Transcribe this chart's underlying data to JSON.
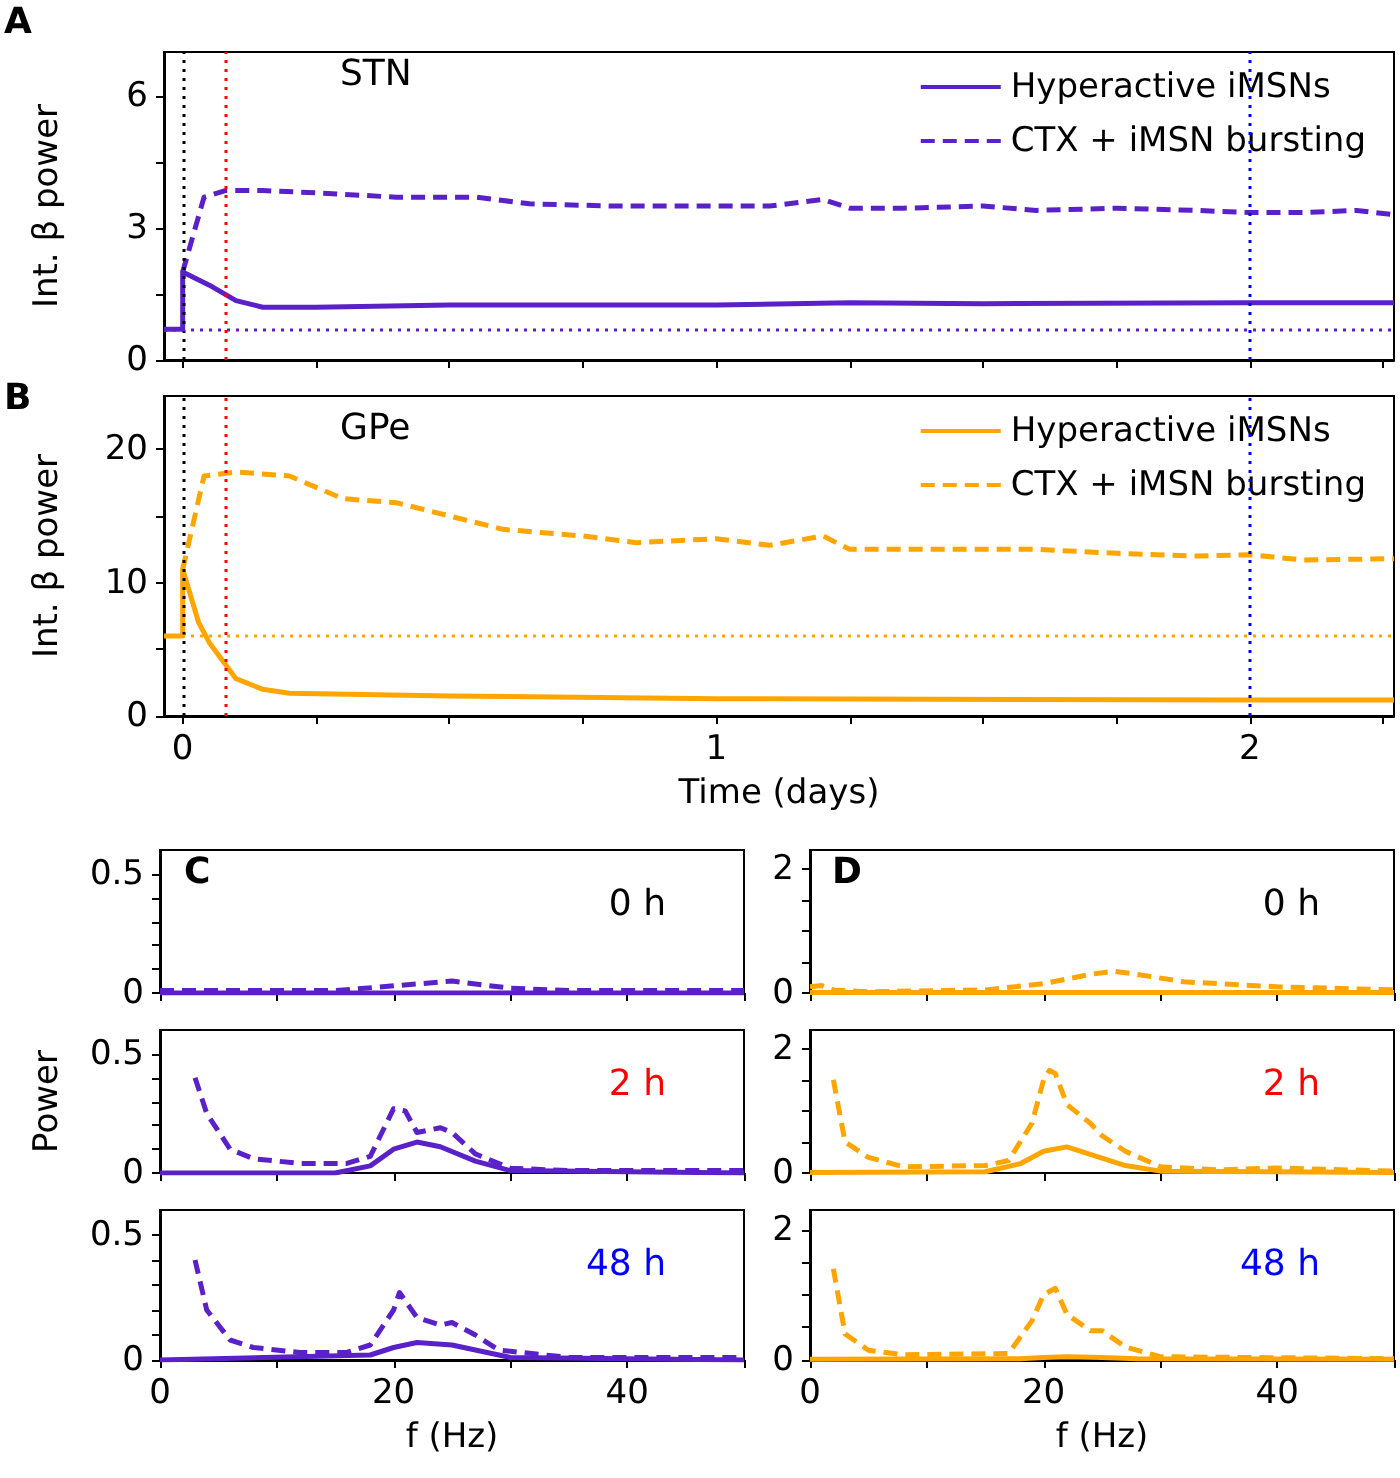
{
  "chart_data": [
    {
      "type": "line",
      "annotations": [
        "A",
        "STN"
      ],
      "ylabel": "Int. β power",
      "xlim": [
        -0.035,
        2.27
      ],
      "ylim": [
        0,
        7
      ],
      "xticks": [
        0,
        {
          "value": 0.25,
          "label": null
        },
        {
          "value": 0.5,
          "label": null
        },
        {
          "value": 0.75,
          "label": null
        },
        1,
        {
          "value": 1.25,
          "label": null
        },
        {
          "value": 1.5,
          "label": null
        },
        {
          "value": 1.75,
          "label": null
        },
        2,
        {
          "value": 2.25,
          "label": null
        }
      ],
      "yticks": [
        0,
        {
          "value": 1.5,
          "label": null
        },
        3,
        {
          "value": 4.5,
          "label": null
        },
        6
      ],
      "tick_labels": "y",
      "legend": "top right",
      "marker": "none",
      "grid": false,
      "ref_lines": [
        {
          "axis": "x",
          "value": 0,
          "color": "#000000",
          "line_style": "dotted"
        },
        {
          "axis": "x",
          "value": 0.083,
          "color": "#ff0000",
          "line_style": "dotted"
        },
        {
          "axis": "x",
          "value": 2,
          "color": "#0000ff",
          "line_style": "dotted"
        },
        {
          "axis": "y",
          "value": 0.7,
          "color": "#5b21c8",
          "line_style": "dotted"
        }
      ],
      "series": [
        {
          "name": "Hyperactive iMSNs",
          "color": "#5b21c8",
          "line_style": "solid",
          "x": [
            -0.035,
            0,
            0,
            0.05,
            0.1,
            0.15,
            0.25,
            0.5,
            1,
            1.25,
            1.5,
            2,
            2.27
          ],
          "values": [
            0.7,
            0.7,
            2.0,
            1.7,
            1.35,
            1.2,
            1.2,
            1.25,
            1.25,
            1.3,
            1.28,
            1.3,
            1.3
          ]
        },
        {
          "name": "CTX + iMSN bursting",
          "color": "#5b21c8",
          "line_style": "dashed",
          "x": [
            0,
            0.04,
            0.08,
            0.15,
            0.25,
            0.4,
            0.55,
            0.65,
            0.8,
            0.95,
            1.1,
            1.2,
            1.25,
            1.35,
            1.5,
            1.6,
            1.75,
            1.9,
            2,
            2.1,
            2.2,
            2.27
          ],
          "values": [
            2.0,
            3.7,
            3.85,
            3.85,
            3.8,
            3.7,
            3.7,
            3.55,
            3.5,
            3.5,
            3.5,
            3.65,
            3.45,
            3.45,
            3.5,
            3.4,
            3.45,
            3.4,
            3.35,
            3.35,
            3.4,
            3.3
          ]
        }
      ]
    },
    {
      "type": "line",
      "annotations": [
        "B",
        "GPe"
      ],
      "ylabel": "Int. β power",
      "xlabel": "Time (days)",
      "xlim": [
        -0.035,
        2.27
      ],
      "ylim": [
        0,
        24
      ],
      "xticks": [
        0,
        {
          "value": 0.25,
          "label": null
        },
        {
          "value": 0.5,
          "label": null
        },
        {
          "value": 0.75,
          "label": null
        },
        1,
        {
          "value": 1.25,
          "label": null
        },
        {
          "value": 1.5,
          "label": null
        },
        {
          "value": 1.75,
          "label": null
        },
        2,
        {
          "value": 2.25,
          "label": null
        }
      ],
      "yticks": [
        0,
        {
          "value": 5,
          "label": null
        },
        10,
        {
          "value": 15,
          "label": null
        },
        20
      ],
      "legend": "top right",
      "marker": "none",
      "grid": false,
      "ref_lines": [
        {
          "axis": "x",
          "value": 0,
          "color": "#000000",
          "line_style": "dotted"
        },
        {
          "axis": "x",
          "value": 0.083,
          "color": "#ff0000",
          "line_style": "dotted"
        },
        {
          "axis": "x",
          "value": 2,
          "color": "#0000ff",
          "line_style": "dotted"
        },
        {
          "axis": "y",
          "value": 6,
          "color": "#ffa500",
          "line_style": "dotted"
        }
      ],
      "series": [
        {
          "name": "Hyperactive iMSNs",
          "color": "#ffa500",
          "line_style": "solid",
          "x": [
            -0.035,
            0,
            0,
            0.03,
            0.05,
            0.1,
            0.15,
            0.2,
            0.5,
            1,
            2,
            2.27
          ],
          "values": [
            6,
            6,
            11,
            7,
            5.5,
            2.8,
            2,
            1.7,
            1.5,
            1.3,
            1.2,
            1.2
          ]
        },
        {
          "name": "CTX + iMSN bursting",
          "color": "#ffa500",
          "line_style": "dashed",
          "x": [
            0,
            0.04,
            0.1,
            0.2,
            0.3,
            0.4,
            0.5,
            0.6,
            0.75,
            0.85,
            1,
            1.1,
            1.2,
            1.25,
            1.4,
            1.5,
            1.6,
            1.75,
            1.9,
            2,
            2.1,
            2.27
          ],
          "values": [
            11,
            18,
            18.3,
            18,
            16.3,
            16,
            15,
            14,
            13.5,
            13,
            13.3,
            12.8,
            13.5,
            12.5,
            12.5,
            12.5,
            12.5,
            12.2,
            12,
            12.1,
            11.7,
            11.8
          ]
        }
      ]
    },
    {
      "type": "line",
      "annotations": [
        "C",
        "0 h"
      ],
      "xlim": [
        0,
        50
      ],
      "ylim": [
        0,
        0.6
      ],
      "tick_labels": "y",
      "marker": "none",
      "grid": false,
      "legend": false,
      "xticks": [
        0,
        {
          "value": 10,
          "label": null
        },
        20,
        {
          "value": 30,
          "label": null
        },
        40,
        {
          "value": 50,
          "label": null
        }
      ],
      "yticks": [
        0,
        {
          "value": 0.1,
          "label": null
        },
        {
          "value": 0.2,
          "label": null
        },
        {
          "value": 0.3,
          "label": null
        },
        {
          "value": 0.4,
          "label": null
        },
        0.5
      ],
      "series": [
        {
          "color": "#5b21c8",
          "line_style": "solid",
          "x": [
            0,
            50
          ],
          "values": [
            0,
            0
          ]
        },
        {
          "color": "#5b21c8",
          "line_style": "dashed",
          "x": [
            0,
            15,
            20,
            25,
            30,
            35,
            50
          ],
          "values": [
            0.01,
            0.01,
            0.03,
            0.05,
            0.02,
            0.01,
            0.01
          ]
        }
      ]
    },
    {
      "type": "line",
      "annotations": [
        "2 h"
      ],
      "ylabel": "Power",
      "xlim": [
        0,
        50
      ],
      "ylim": [
        0,
        0.6
      ],
      "tick_labels": "y",
      "marker": "none",
      "grid": false,
      "legend": false,
      "xticks": [
        0,
        {
          "value": 10,
          "label": null
        },
        20,
        {
          "value": 30,
          "label": null
        },
        40,
        {
          "value": 50,
          "label": null
        }
      ],
      "yticks": [
        0,
        {
          "value": 0.1,
          "label": null
        },
        {
          "value": 0.2,
          "label": null
        },
        {
          "value": 0.3,
          "label": null
        },
        {
          "value": 0.4,
          "label": null
        },
        0.5
      ],
      "series": [
        {
          "color": "#5b21c8",
          "line_style": "solid",
          "x": [
            0,
            15,
            18,
            20,
            22,
            24,
            27,
            30,
            50
          ],
          "values": [
            0,
            0,
            0.03,
            0.1,
            0.13,
            0.11,
            0.05,
            0.01,
            0
          ]
        },
        {
          "color": "#5b21c8",
          "line_style": "dashed",
          "x": [
            3,
            4,
            6,
            8,
            12,
            16,
            18,
            20,
            21,
            22,
            24,
            25,
            27,
            30,
            35,
            50
          ],
          "values": [
            0.4,
            0.25,
            0.1,
            0.06,
            0.04,
            0.04,
            0.07,
            0.27,
            0.26,
            0.17,
            0.19,
            0.17,
            0.08,
            0.02,
            0.01,
            0.01
          ]
        }
      ]
    },
    {
      "type": "line",
      "annotations": [
        "48 h"
      ],
      "xlabel": "f (Hz)",
      "xlim": [
        0,
        50
      ],
      "ylim": [
        0,
        0.6
      ],
      "marker": "none",
      "grid": false,
      "legend": false,
      "xticks": [
        0,
        {
          "value": 10,
          "label": null
        },
        20,
        {
          "value": 30,
          "label": null
        },
        40,
        {
          "value": 50,
          "label": null
        }
      ],
      "yticks": [
        0,
        {
          "value": 0.1,
          "label": null
        },
        {
          "value": 0.2,
          "label": null
        },
        {
          "value": 0.3,
          "label": null
        },
        {
          "value": 0.4,
          "label": null
        },
        0.5
      ],
      "series": [
        {
          "color": "#5b21c8",
          "line_style": "solid",
          "x": [
            0,
            18,
            20,
            22,
            25,
            28,
            30,
            50
          ],
          "values": [
            0,
            0.02,
            0.05,
            0.07,
            0.06,
            0.03,
            0.01,
            0
          ]
        },
        {
          "color": "#5b21c8",
          "line_style": "dashed",
          "x": [
            3,
            4,
            6,
            8,
            12,
            16,
            18,
            20,
            20.5,
            22,
            24,
            25,
            27,
            29,
            35,
            50
          ],
          "values": [
            0.4,
            0.2,
            0.08,
            0.05,
            0.03,
            0.03,
            0.06,
            0.2,
            0.27,
            0.17,
            0.14,
            0.15,
            0.1,
            0.04,
            0.01,
            0.01
          ]
        }
      ]
    },
    {
      "type": "line",
      "annotations": [
        "D",
        "0 h"
      ],
      "xlim": [
        0,
        50
      ],
      "ylim": [
        0,
        2.3
      ],
      "tick_labels": "y",
      "marker": "none",
      "grid": false,
      "legend": false,
      "xticks": [
        0,
        {
          "value": 10,
          "label": null
        },
        20,
        {
          "value": 30,
          "label": null
        },
        40,
        {
          "value": 50,
          "label": null
        }
      ],
      "yticks": [
        0,
        {
          "value": 0.5,
          "label": null
        },
        {
          "value": 1,
          "label": null
        },
        {
          "value": 1.5,
          "label": null
        },
        2
      ],
      "series": [
        {
          "color": "#ffa500",
          "line_style": "solid",
          "x": [
            0,
            50
          ],
          "values": [
            0.01,
            0.01
          ]
        },
        {
          "color": "#ffa500",
          "line_style": "dashed",
          "x": [
            0,
            1,
            2,
            5,
            15,
            20,
            24,
            26,
            28,
            32,
            40,
            50
          ],
          "values": [
            0.1,
            0.12,
            0.05,
            0.02,
            0.05,
            0.15,
            0.3,
            0.35,
            0.3,
            0.18,
            0.1,
            0.05
          ]
        }
      ]
    },
    {
      "type": "line",
      "annotations": [
        "2 h"
      ],
      "xlim": [
        0,
        50
      ],
      "ylim": [
        0,
        2.3
      ],
      "tick_labels": "y",
      "marker": "none",
      "grid": false,
      "legend": false,
      "xticks": [
        0,
        {
          "value": 10,
          "label": null
        },
        20,
        {
          "value": 30,
          "label": null
        },
        40,
        {
          "value": 50,
          "label": null
        }
      ],
      "yticks": [
        0,
        {
          "value": 0.5,
          "label": null
        },
        {
          "value": 1,
          "label": null
        },
        {
          "value": 1.5,
          "label": null
        },
        2
      ],
      "series": [
        {
          "color": "#ffa500",
          "line_style": "solid",
          "x": [
            0,
            15,
            18,
            20,
            22,
            24,
            27,
            30,
            50
          ],
          "values": [
            0.01,
            0.02,
            0.15,
            0.35,
            0.42,
            0.3,
            0.12,
            0.03,
            0.01
          ]
        },
        {
          "color": "#ffa500",
          "line_style": "dashed",
          "x": [
            2,
            3,
            5,
            8,
            15,
            17,
            19,
            20,
            20.5,
            21,
            22,
            24,
            25,
            27,
            30,
            35,
            40,
            50
          ],
          "values": [
            1.5,
            0.5,
            0.25,
            0.1,
            0.12,
            0.2,
            0.8,
            1.5,
            1.65,
            1.6,
            1.1,
            0.8,
            0.6,
            0.35,
            0.1,
            0.05,
            0.08,
            0.03
          ]
        }
      ]
    },
    {
      "type": "line",
      "annotations": [
        "48 h"
      ],
      "xlabel": "f (Hz)",
      "xlim": [
        0,
        50
      ],
      "ylim": [
        0,
        2.3
      ],
      "marker": "none",
      "grid": false,
      "legend": false,
      "xticks": [
        0,
        {
          "value": 10,
          "label": null
        },
        20,
        {
          "value": 30,
          "label": null
        },
        40,
        {
          "value": 50,
          "label": null
        }
      ],
      "yticks": [
        0,
        {
          "value": 0.5,
          "label": null
        },
        {
          "value": 1,
          "label": null
        },
        {
          "value": 1.5,
          "label": null
        },
        2
      ],
      "series": [
        {
          "color": "#ffa500",
          "line_style": "solid",
          "x": [
            0,
            18,
            20,
            22,
            25,
            28,
            50
          ],
          "values": [
            0.01,
            0.02,
            0.04,
            0.05,
            0.04,
            0.02,
            0.01
          ]
        },
        {
          "color": "#ffa500",
          "line_style": "dashed",
          "x": [
            2,
            3,
            5,
            8,
            17,
            19,
            20,
            21,
            22,
            24,
            25,
            27,
            30,
            50
          ],
          "values": [
            1.4,
            0.4,
            0.15,
            0.08,
            0.1,
            0.6,
            1.0,
            1.1,
            0.7,
            0.45,
            0.45,
            0.2,
            0.05,
            0.02
          ]
        }
      ]
    }
  ]
}
